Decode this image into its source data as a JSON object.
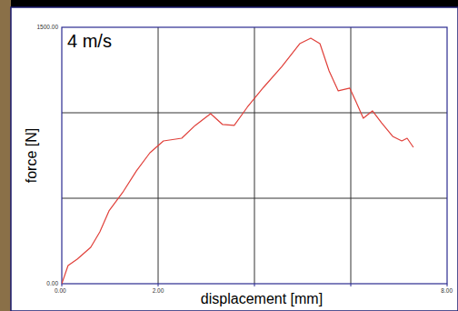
{
  "chart_data": {
    "type": "line",
    "annotation": "4 m/s",
    "x_label": "displacement [mm]",
    "y_label": "force [N]",
    "x": [
      0,
      0.13,
      0.32,
      0.6,
      0.79,
      0.98,
      1.26,
      1.55,
      1.83,
      2.11,
      2.49,
      2.77,
      3.09,
      3.34,
      3.58,
      3.85,
      4.19,
      4.57,
      4.94,
      5.17,
      5.36,
      5.55,
      5.74,
      5.98,
      6.11,
      6.26,
      6.45,
      6.64,
      6.87,
      7.06,
      7.17,
      7.3
    ],
    "values": [
      0,
      106,
      144,
      213,
      303,
      426,
      532,
      660,
      766,
      835,
      851,
      926,
      995,
      931,
      926,
      1032,
      1149,
      1271,
      1404,
      1436,
      1404,
      1245,
      1128,
      1144,
      1064,
      968,
      1011,
      941,
      862,
      835,
      851,
      798
    ],
    "color": "#e0403a",
    "xlim": [
      0,
      8
    ],
    "ylim": [
      0,
      1500
    ],
    "xticks": [
      {
        "value": 0,
        "label": "0.00"
      },
      {
        "value": 2,
        "label": "2.00"
      },
      {
        "value": 4,
        "label": null
      },
      {
        "value": 6,
        "label": null
      },
      {
        "value": 8,
        "label": "8.00"
      }
    ],
    "yticks": [
      {
        "value": 0,
        "label": "0.00"
      },
      {
        "value": 500,
        "label": null
      },
      {
        "value": 1000,
        "label": null
      },
      {
        "value": 1500,
        "label": "1500.00"
      }
    ],
    "grid": true
  }
}
